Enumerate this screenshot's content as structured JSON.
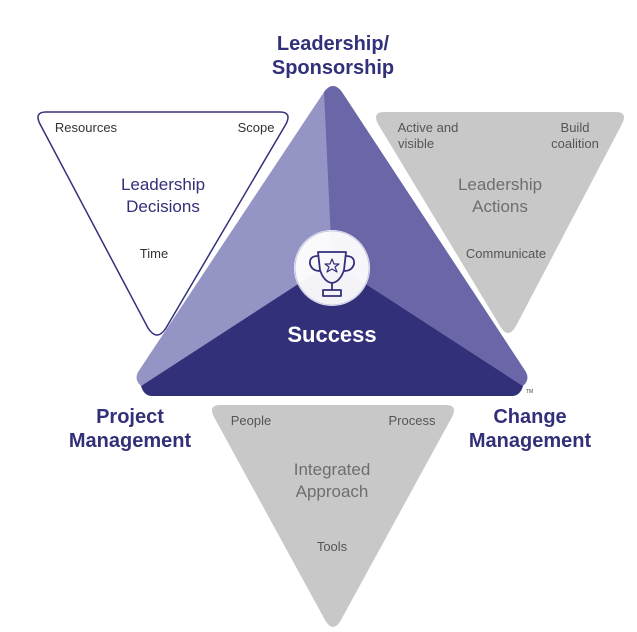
{
  "top_label": {
    "line1": "Leadership/",
    "line2": "Sponsorship"
  },
  "left_label": {
    "line1": "Project",
    "line2": "Management"
  },
  "right_label": {
    "line1": "Change",
    "line2": "Management"
  },
  "center": {
    "label": "Success",
    "icon": "trophy-icon"
  },
  "trademark": "TM",
  "panels": {
    "decisions": {
      "title_line1": "Leadership",
      "title_line2": "Decisions",
      "item_left": "Resources",
      "item_right": "Scope",
      "item_bottom": "Time"
    },
    "actions": {
      "title_line1": "Leadership",
      "title_line2": "Actions",
      "item_left_line1": "Active and",
      "item_left_line2": "visible",
      "item_right_line1": "Build",
      "item_right_line2": "coalition",
      "item_bottom": "Communicate"
    },
    "approach": {
      "title_line1": "Integrated",
      "title_line2": "Approach",
      "item_left": "People",
      "item_right": "Process",
      "item_bottom": "Tools"
    }
  },
  "colors": {
    "navy": "#33307a",
    "left_facet": "#9495c4",
    "right_facet": "#6a66a8",
    "bottom_facet": "#33307a",
    "panel_gray": "#c8c8c8",
    "panel_outline": "#33307a"
  }
}
